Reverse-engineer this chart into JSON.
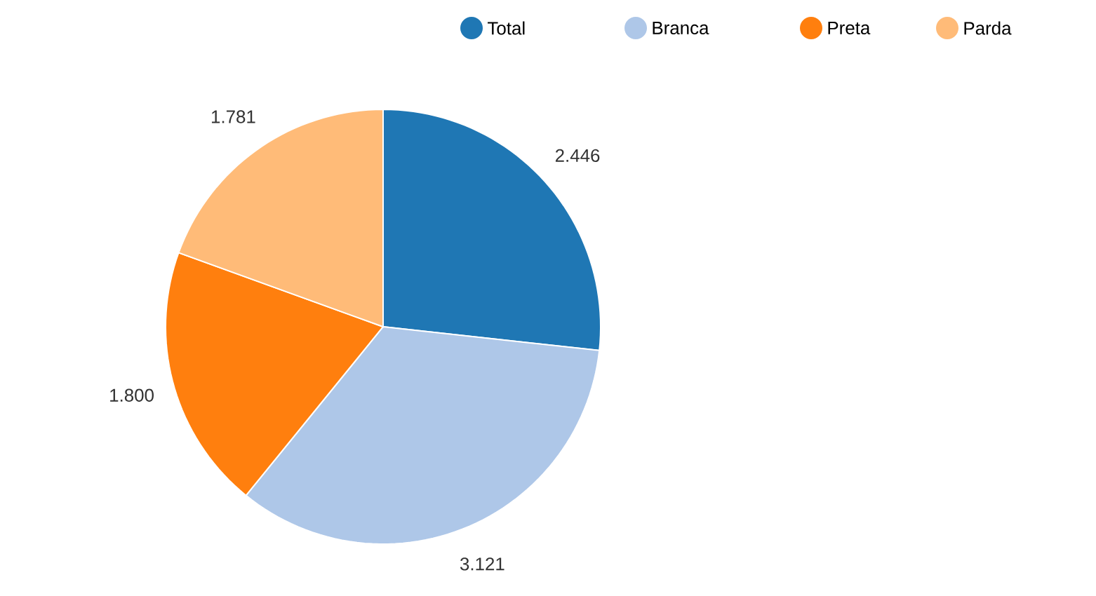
{
  "chart_data": {
    "type": "pie",
    "categories": [
      "Total",
      "Branca",
      "Preta",
      "Parda"
    ],
    "values": [
      2.446,
      3.121,
      1.8,
      1.781
    ],
    "value_labels": [
      "2.446",
      "3.121",
      "1.800",
      "1.781"
    ],
    "colors": [
      "#1f77b4",
      "#aec7e8",
      "#ff7f0e",
      "#ffbb78"
    ],
    "legend": "top"
  }
}
